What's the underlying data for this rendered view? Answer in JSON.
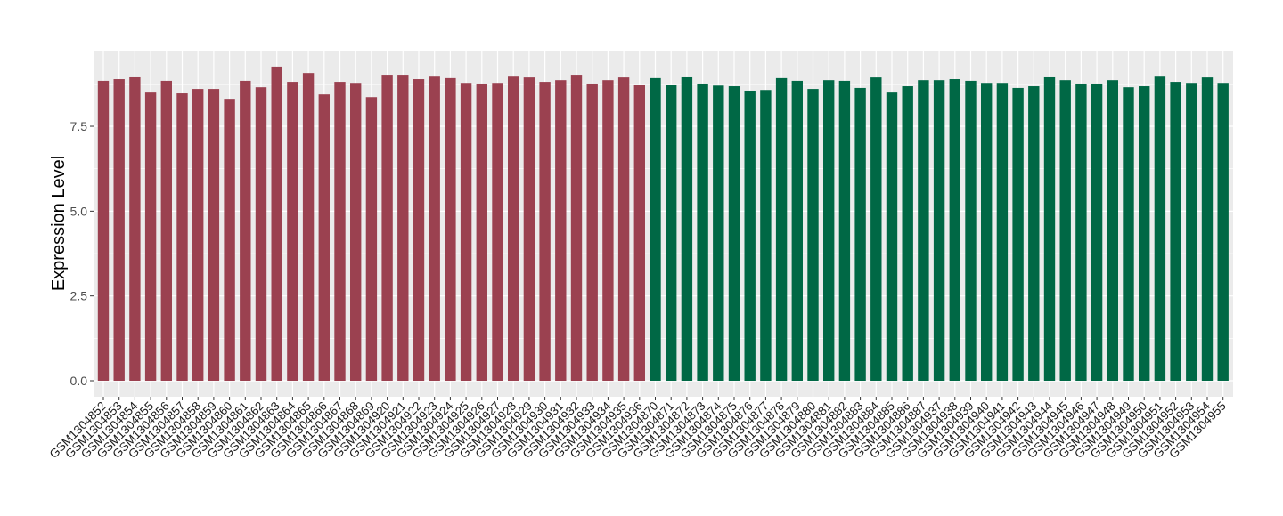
{
  "chart_data": {
    "type": "bar",
    "title": "",
    "xlabel": "",
    "ylabel": "Expression Level",
    "ylim": [
      0,
      9.73
    ],
    "yticks": [
      0.0,
      2.5,
      5.0,
      7.5
    ],
    "ytick_labels": [
      "0.0",
      "2.5",
      "5.0",
      "7.5"
    ],
    "grid": true,
    "legend": "none",
    "colors": {
      "group1": "#9b4150",
      "group2": "#006845",
      "panel": "#ebebeb",
      "grid": "#ffffff"
    },
    "categories": [
      "GSM1304852",
      "GSM1304853",
      "GSM1304854",
      "GSM1304855",
      "GSM1304856",
      "GSM1304857",
      "GSM1304858",
      "GSM1304859",
      "GSM1304860",
      "GSM1304861",
      "GSM1304862",
      "GSM1304863",
      "GSM1304864",
      "GSM1304865",
      "GSM1304866",
      "GSM1304867",
      "GSM1304868",
      "GSM1304869",
      "GSM1304920",
      "GSM1304921",
      "GSM1304922",
      "GSM1304923",
      "GSM1304924",
      "GSM1304925",
      "GSM1304926",
      "GSM1304927",
      "GSM1304928",
      "GSM1304929",
      "GSM1304930",
      "GSM1304931",
      "GSM1304932",
      "GSM1304933",
      "GSM1304934",
      "GSM1304935",
      "GSM1304936",
      "GSM1304870",
      "GSM1304871",
      "GSM1304872",
      "GSM1304873",
      "GSM1304874",
      "GSM1304875",
      "GSM1304876",
      "GSM1304877",
      "GSM1304878",
      "GSM1304879",
      "GSM1304880",
      "GSM1304881",
      "GSM1304882",
      "GSM1304883",
      "GSM1304884",
      "GSM1304885",
      "GSM1304886",
      "GSM1304887",
      "GSM1304937",
      "GSM1304938",
      "GSM1304939",
      "GSM1304940",
      "GSM1304941",
      "GSM1304942",
      "GSM1304943",
      "GSM1304944",
      "GSM1304945",
      "GSM1304946",
      "GSM1304947",
      "GSM1304948",
      "GSM1304949",
      "GSM1304950",
      "GSM1304951",
      "GSM1304952",
      "GSM1304953",
      "GSM1304954",
      "GSM1304955"
    ],
    "values": [
      8.84,
      8.89,
      8.97,
      8.52,
      8.84,
      8.47,
      8.6,
      8.6,
      8.31,
      8.84,
      8.65,
      9.26,
      8.81,
      9.07,
      8.44,
      8.81,
      8.78,
      8.36,
      9.02,
      9.02,
      8.89,
      8.99,
      8.92,
      8.78,
      8.76,
      8.78,
      8.99,
      8.94,
      8.81,
      8.86,
      9.02,
      8.76,
      8.86,
      8.94,
      8.73,
      8.92,
      8.73,
      8.97,
      8.76,
      8.7,
      8.68,
      8.55,
      8.57,
      8.92,
      8.84,
      8.6,
      8.86,
      8.84,
      8.63,
      8.94,
      8.52,
      8.68,
      8.86,
      8.86,
      8.89,
      8.84,
      8.78,
      8.78,
      8.63,
      8.68,
      8.97,
      8.86,
      8.76,
      8.76,
      8.86,
      8.65,
      8.68,
      8.99,
      8.81,
      8.78,
      8.94,
      8.78
    ],
    "groups": [
      "group1",
      "group1",
      "group1",
      "group1",
      "group1",
      "group1",
      "group1",
      "group1",
      "group1",
      "group1",
      "group1",
      "group1",
      "group1",
      "group1",
      "group1",
      "group1",
      "group1",
      "group1",
      "group1",
      "group1",
      "group1",
      "group1",
      "group1",
      "group1",
      "group1",
      "group1",
      "group1",
      "group1",
      "group1",
      "group1",
      "group1",
      "group1",
      "group1",
      "group1",
      "group1",
      "group2",
      "group2",
      "group2",
      "group2",
      "group2",
      "group2",
      "group2",
      "group2",
      "group2",
      "group2",
      "group2",
      "group2",
      "group2",
      "group2",
      "group2",
      "group2",
      "group2",
      "group2",
      "group2",
      "group2",
      "group2",
      "group2",
      "group2",
      "group2",
      "group2",
      "group2",
      "group2",
      "group2",
      "group2",
      "group2",
      "group2",
      "group2",
      "group2",
      "group2",
      "group2",
      "group2",
      "group2"
    ]
  }
}
